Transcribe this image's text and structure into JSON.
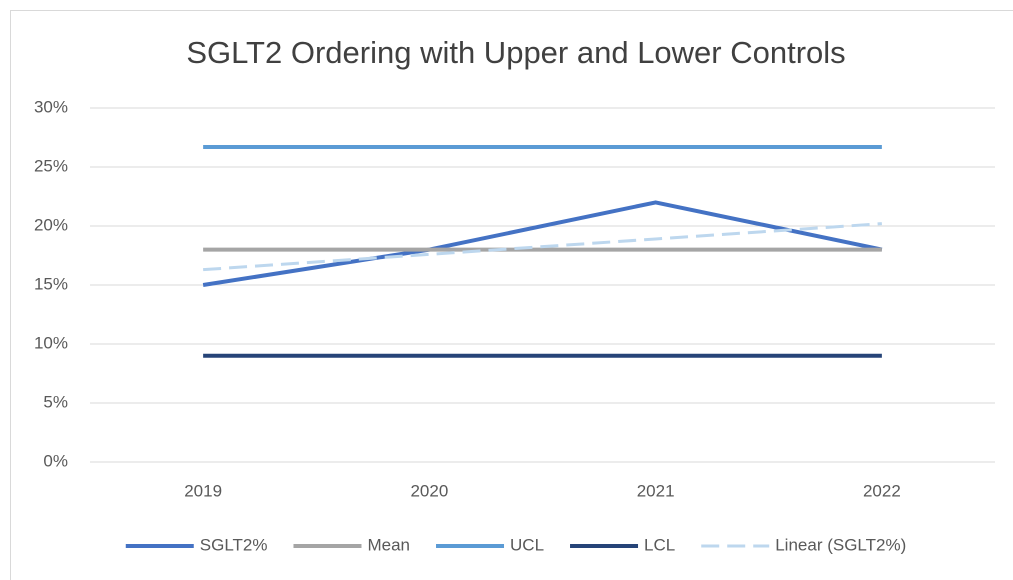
{
  "chart_data": {
    "type": "line",
    "title": "SGLT2 Ordering with Upper and Lower Controls",
    "categories": [
      "2019",
      "2020",
      "2021",
      "2022"
    ],
    "series": [
      {
        "name": "SGLT2%",
        "color": "#4472c4",
        "values": [
          15,
          18,
          22,
          18
        ]
      },
      {
        "name": "Mean",
        "color": "#a5a5a5",
        "values": [
          18,
          18,
          18,
          18
        ]
      },
      {
        "name": "UCL",
        "color": "#5b9bd5",
        "values": [
          26.7,
          26.7,
          26.7,
          26.7
        ]
      },
      {
        "name": "LCL",
        "color": "#264478",
        "values": [
          9,
          9,
          9,
          9
        ]
      },
      {
        "name": "Linear (SGLT2%)",
        "color": "#bdd7ee",
        "dashed": true,
        "values": [
          16.3,
          17.6,
          18.9,
          20.2
        ]
      }
    ],
    "ylim": [
      0,
      30
    ],
    "yticks": [
      {
        "value": 0,
        "label": "0%"
      },
      {
        "value": 5,
        "label": "5%"
      },
      {
        "value": 10,
        "label": "10%"
      },
      {
        "value": 15,
        "label": "15%"
      },
      {
        "value": 20,
        "label": "20%"
      },
      {
        "value": 25,
        "label": "25%"
      },
      {
        "value": 30,
        "label": "30%"
      }
    ],
    "grid": true,
    "legend": "bottom"
  }
}
